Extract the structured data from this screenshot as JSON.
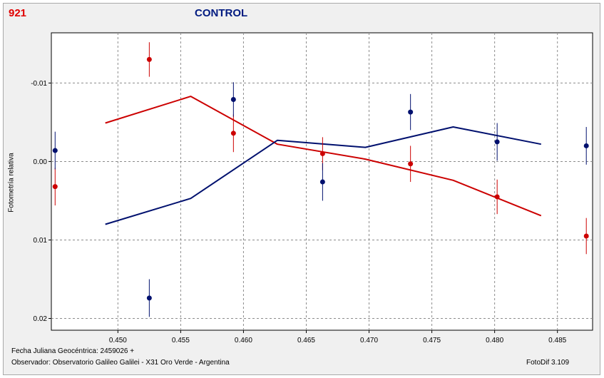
{
  "header": {
    "object_id": "921",
    "title": "CONTROL",
    "object_color": "#e00000",
    "title_color": "#001a80"
  },
  "footer": {
    "date_label": "Fecha Juliana Geocéntrica: 2459026 +",
    "observer_label": "Observador: Observatorio Galileo Galilei - X31 Oro Verde - Argentina",
    "version": "FotoDif 3.109"
  },
  "chart_data": {
    "type": "scatter",
    "title": "CONTROL",
    "xlabel": "Fecha Juliana Geocéntrica: 2459026 +",
    "ylabel": "Fotometría relativa",
    "xlim": [
      0.4447,
      0.4878
    ],
    "ylim": [
      -0.0164,
      0.0215
    ],
    "y_inverted": true,
    "grid": true,
    "x_ticks": [
      0.45,
      0.455,
      0.46,
      0.465,
      0.47,
      0.475,
      0.48,
      0.485
    ],
    "x_tick_labels": [
      "0.450",
      "0.455",
      "0.460",
      "0.465",
      "0.470",
      "0.475",
      "0.480",
      "0.485"
    ],
    "y_ticks": [
      -0.01,
      0.0,
      0.01,
      0.02
    ],
    "y_tick_labels": [
      "-0.01",
      "0.00",
      "0.01",
      "0.02"
    ],
    "series": [
      {
        "color": "#cc0000",
        "points": [
          {
            "x": 0.445,
            "y": 0.0032,
            "err": 0.0024
          },
          {
            "x": 0.4525,
            "y": -0.013,
            "err": 0.0022
          },
          {
            "x": 0.4592,
            "y": -0.0036,
            "err": 0.0024
          },
          {
            "x": 0.4663,
            "y": -0.001,
            "err": 0.0021
          },
          {
            "x": 0.4733,
            "y": 0.0003,
            "err": 0.0023
          },
          {
            "x": 0.4802,
            "y": 0.0045,
            "err": 0.0022
          },
          {
            "x": 0.4873,
            "y": 0.0095,
            "err": 0.0023
          }
        ],
        "trend": [
          {
            "x": 0.449,
            "y": -0.0049
          },
          {
            "x": 0.4558,
            "y": -0.0083
          },
          {
            "x": 0.4627,
            "y": -0.0022
          },
          {
            "x": 0.4697,
            "y": -0.0003
          },
          {
            "x": 0.4767,
            "y": 0.0024
          },
          {
            "x": 0.4837,
            "y": 0.0069
          }
        ]
      },
      {
        "color": "#00106e",
        "points": [
          {
            "x": 0.445,
            "y": -0.0014,
            "err": 0.0024
          },
          {
            "x": 0.4525,
            "y": 0.0174,
            "err": 0.0024
          },
          {
            "x": 0.4592,
            "y": -0.0079,
            "err": 0.0022
          },
          {
            "x": 0.4663,
            "y": 0.0026,
            "err": 0.0024
          },
          {
            "x": 0.4733,
            "y": -0.0063,
            "err": 0.0023
          },
          {
            "x": 0.4802,
            "y": -0.0025,
            "err": 0.0024
          },
          {
            "x": 0.4873,
            "y": -0.002,
            "err": 0.0024
          }
        ],
        "trend": [
          {
            "x": 0.449,
            "y": 0.008
          },
          {
            "x": 0.4558,
            "y": 0.0047
          },
          {
            "x": 0.4627,
            "y": -0.0027
          },
          {
            "x": 0.4697,
            "y": -0.0018
          },
          {
            "x": 0.4767,
            "y": -0.0044
          },
          {
            "x": 0.4837,
            "y": -0.0022
          }
        ]
      }
    ]
  }
}
